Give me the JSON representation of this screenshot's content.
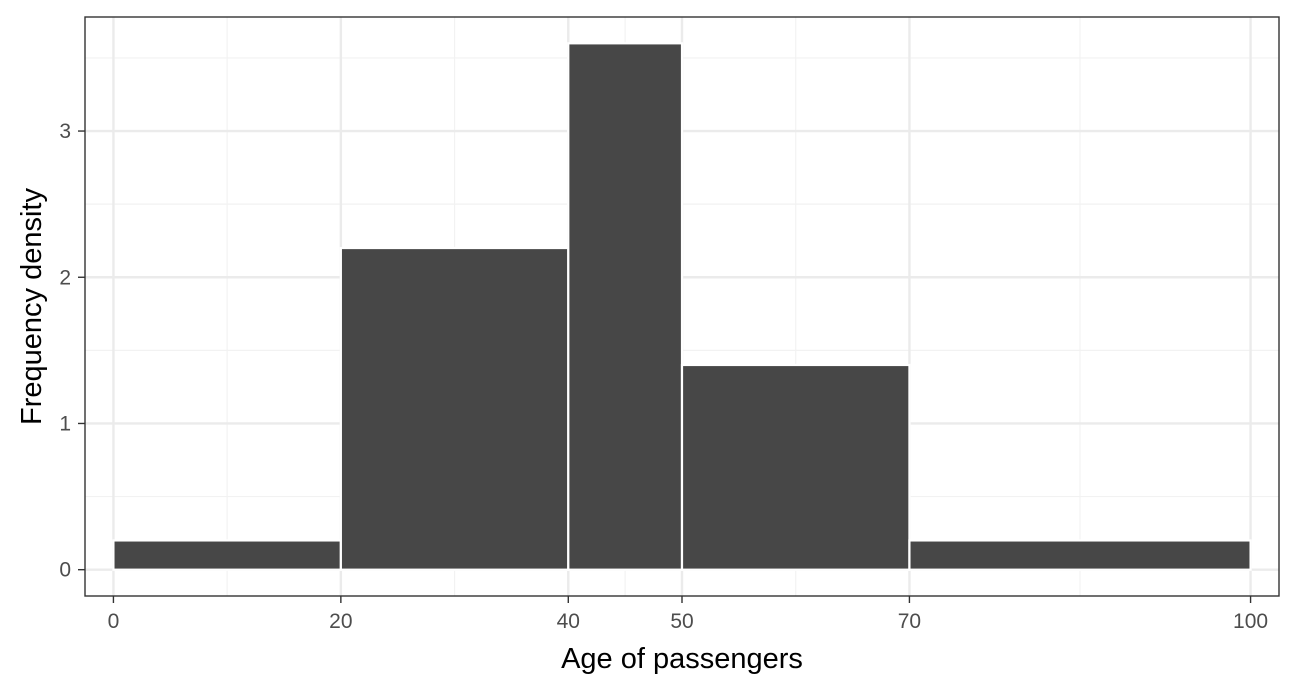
{
  "chart_data": {
    "type": "bar",
    "title": "",
    "xlabel": "Age of passengers",
    "ylabel": "Frequency density",
    "xlim": [
      -2.5,
      102.5
    ],
    "ylim": [
      -0.18,
      3.78
    ],
    "x_breaks": [
      0,
      20,
      40,
      50,
      70,
      100
    ],
    "x_tick_labels": [
      "0",
      "20",
      "40",
      "50",
      "70",
      "100"
    ],
    "x_minor_breaks": [
      10,
      30,
      45,
      60,
      85
    ],
    "y_breaks": [
      0,
      1,
      2,
      3
    ],
    "y_tick_labels": [
      "0",
      "1",
      "2",
      "3"
    ],
    "y_minor_breaks": [
      0.5,
      1.5,
      2.5,
      3.5
    ],
    "bins": [
      {
        "start": 0,
        "end": 20,
        "value": 0.2
      },
      {
        "start": 20,
        "end": 40,
        "value": 2.2
      },
      {
        "start": 40,
        "end": 50,
        "value": 3.6
      },
      {
        "start": 50,
        "end": 70,
        "value": 1.4
      },
      {
        "start": 70,
        "end": 100,
        "value": 0.2
      }
    ],
    "grid": true,
    "legend": "none",
    "colors": {
      "bar_fill": "#474747",
      "bar_outline": "#ffffff",
      "grid_major": "#ebebeb",
      "grid_minor": "#f2f2f2",
      "panel_border": "#333333",
      "tick": "#333333"
    }
  }
}
